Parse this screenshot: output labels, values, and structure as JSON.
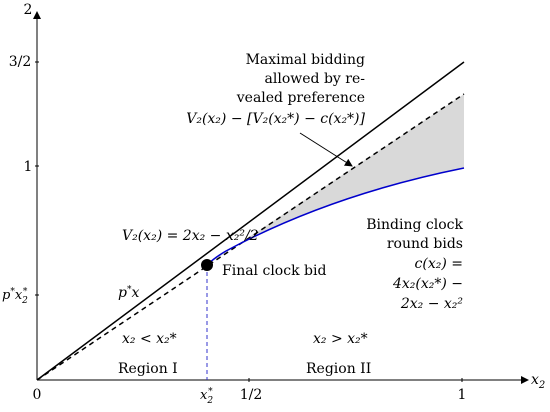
{
  "diagram": {
    "axes": {
      "y_tick_labels": {
        "top": "2",
        "three_halves": "3/2",
        "one": "1"
      },
      "x_tick_labels": {
        "origin": "0",
        "x_star_main": "x",
        "x_star_sub": "2",
        "x_star_sup": "*",
        "half": "1/2",
        "one": "1"
      },
      "x_axis_var": "x",
      "x_axis_sub": "2"
    },
    "annotations": {
      "maximal_bidding": {
        "lines": [
          "Maximal bidding",
          "allowed by re-",
          "vealed preference"
        ],
        "formula": "V₂(x₂) − [V₂(x₂*) − c(x₂*)]"
      },
      "valuation": "V₂(x₂) = 2x₂ − x₂²/2",
      "binding_clock": {
        "lines": [
          "Binding clock",
          "round bids"
        ],
        "formula_lines": [
          "c(x₂)   =",
          "4x₂(x₂*) −",
          "2x₂ − x₂²"
        ]
      },
      "final_clock_bid": "Final clock bid",
      "price_line_label": "p*x",
      "p_star_x_star": "p*x₂*",
      "region_left_condition": "x₂ < x₂*",
      "region_right_condition": "x₂ > x₂*",
      "region_one": "Region I",
      "region_two": "Region II"
    },
    "colors": {
      "binding_curve": "#0000cc",
      "final_bid_dashed": "#3333cc",
      "shaded_region": "#d9d9d9",
      "solid_line": "#000000"
    }
  }
}
